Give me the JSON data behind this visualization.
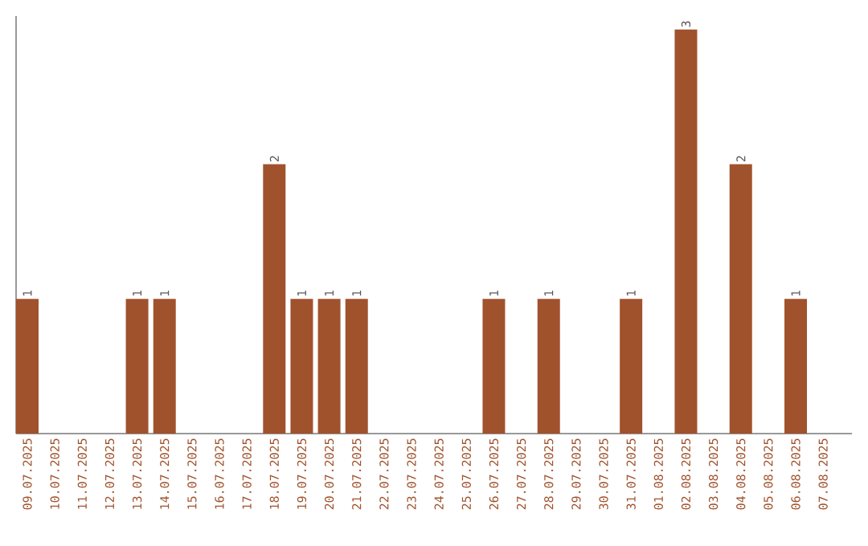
{
  "chart_data": {
    "type": "bar",
    "categories": [
      "09.07.2025",
      "10.07.2025",
      "11.07.2025",
      "12.07.2025",
      "13.07.2025",
      "14.07.2025",
      "15.07.2025",
      "16.07.2025",
      "17.07.2025",
      "18.07.2025",
      "19.07.2025",
      "20.07.2025",
      "21.07.2025",
      "22.07.2025",
      "23.07.2025",
      "24.07.2025",
      "25.07.2025",
      "26.07.2025",
      "27.07.2025",
      "28.07.2025",
      "29.07.2025",
      "30.07.2025",
      "31.07.2025",
      "01.08.2025",
      "02.08.2025",
      "03.08.2025",
      "04.08.2025",
      "05.08.2025",
      "06.08.2025",
      "07.08.2025"
    ],
    "values": [
      1,
      null,
      null,
      null,
      1,
      1,
      null,
      null,
      null,
      2,
      1,
      1,
      1,
      null,
      null,
      null,
      null,
      1,
      null,
      1,
      null,
      null,
      1,
      null,
      3,
      null,
      2,
      null,
      1,
      null
    ],
    "color": "#a0522d",
    "data_labels": true,
    "ylim": [
      0,
      3.1
    ],
    "tick_labels": "x",
    "grid": false
  }
}
